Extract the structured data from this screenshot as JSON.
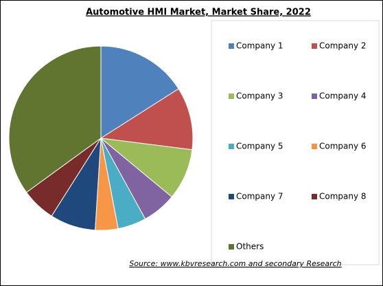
{
  "chart_data": {
    "type": "pie",
    "title": "Automotive HMI Market, Market Share, 2022",
    "categories": [
      "Company 1",
      "Company 2",
      "Company 3",
      "Company 4",
      "Company 5",
      "Company 6",
      "Company 7",
      "Company 8",
      "Others"
    ],
    "values": [
      16,
      11,
      9,
      6,
      5,
      4,
      8,
      6,
      35
    ],
    "colors": [
      "#4f81bd",
      "#c0504d",
      "#9bbb59",
      "#8064a2",
      "#4bacc6",
      "#f79646",
      "#1f497d",
      "#772c2a",
      "#5f7530"
    ],
    "legend": "right",
    "source": "Source:  www.kbvresearch.com  and secondary Research"
  }
}
